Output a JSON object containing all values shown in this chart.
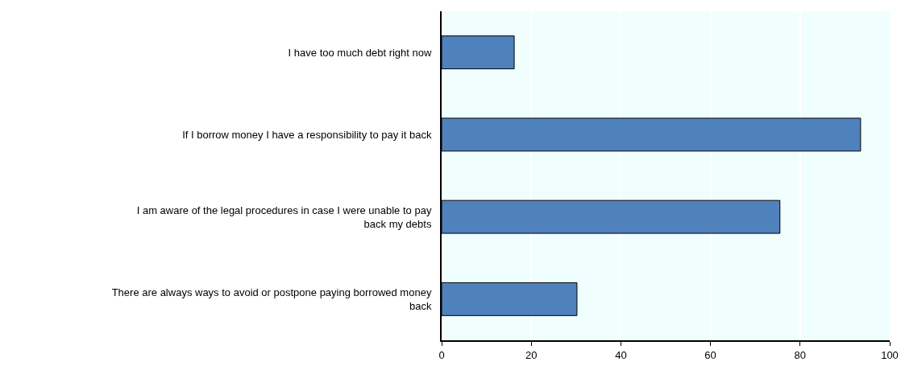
{
  "chart_data": {
    "type": "bar",
    "orientation": "horizontal",
    "categories": [
      "I have too much debt right now",
      "If I borrow money I have a responsibility to pay it back",
      "I am aware of the legal procedures in case I were unable to pay back my debts",
      "There are always ways to avoid or postpone paying borrowed money back"
    ],
    "values": [
      16.2,
      93.5,
      75.5,
      30.2
    ],
    "color": "#4f81bd",
    "xlim": [
      0,
      100
    ],
    "xticks": [
      0,
      20,
      40,
      60,
      80,
      100
    ],
    "grid": "x"
  }
}
